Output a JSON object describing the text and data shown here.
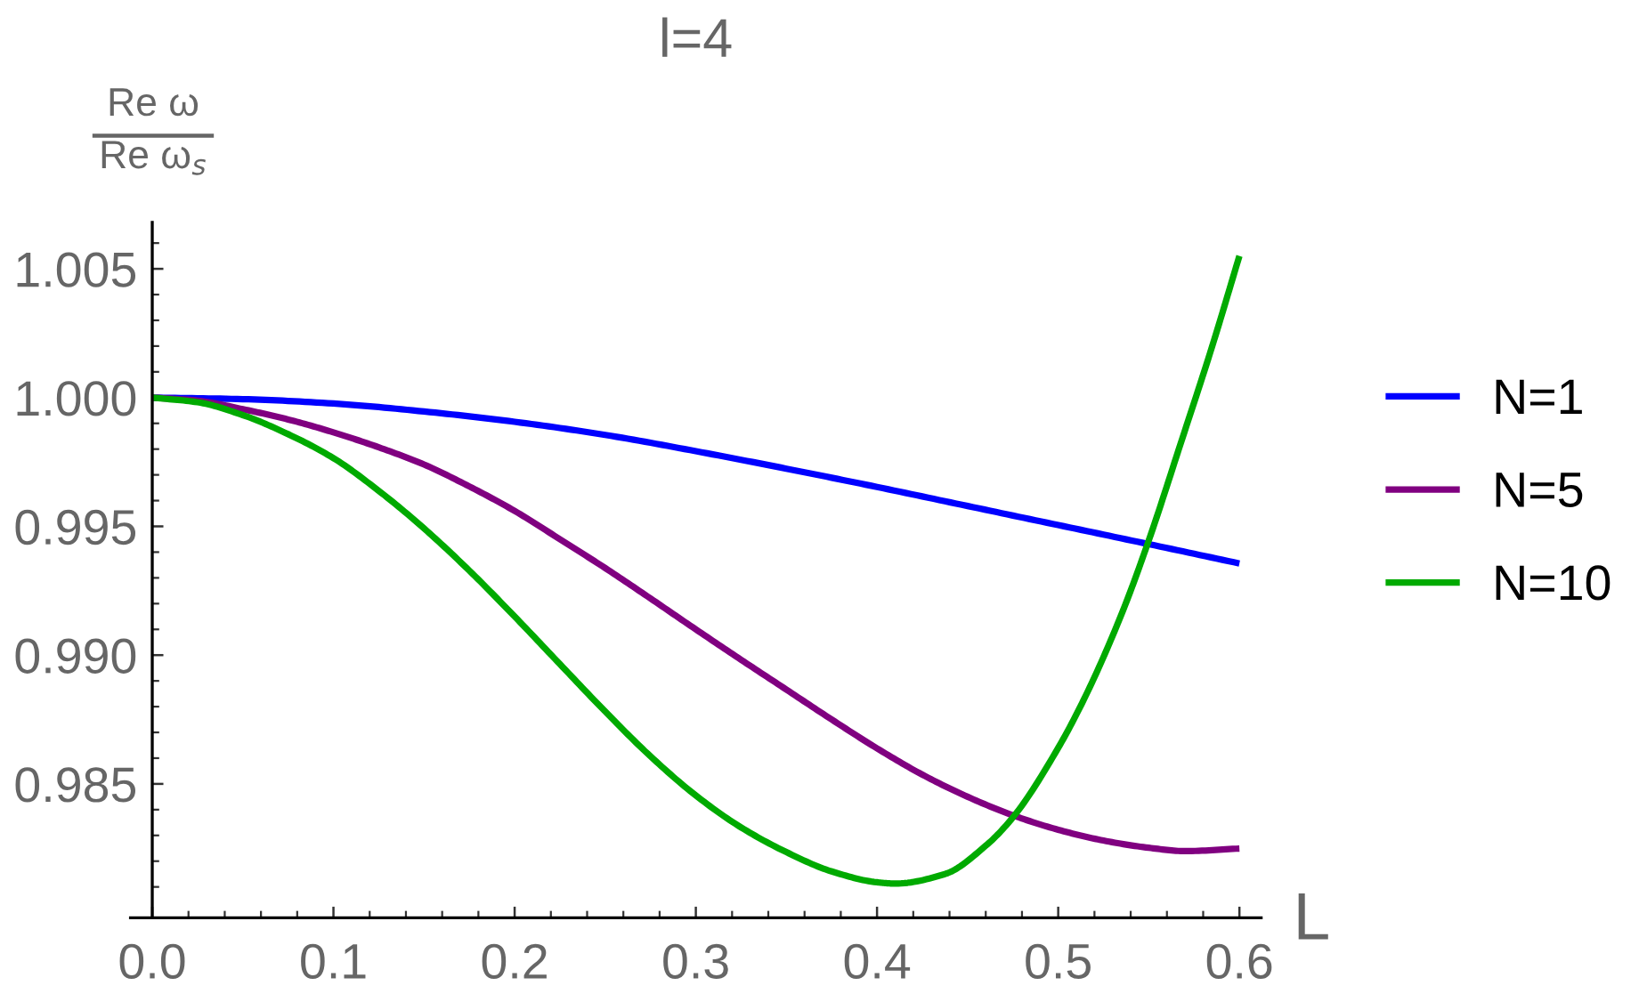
{
  "chart_data": {
    "type": "line",
    "title": "l=4",
    "xlabel": "L",
    "ylabel": "Re ω\nRe ω$_{s}$",
    "xlim": [
      -0.012,
      0.612
    ],
    "ylim": [
      0.9798,
      1.0068
    ],
    "xticks": [
      {
        "value": 0,
        "label": "0.0"
      },
      {
        "value": 0.02,
        "label": null
      },
      {
        "value": 0.04,
        "label": null
      },
      {
        "value": 0.06,
        "label": null
      },
      {
        "value": 0.08,
        "label": null
      },
      0.1,
      {
        "value": 0.12,
        "label": null
      },
      {
        "value": 0.14,
        "label": null
      },
      {
        "value": 0.16,
        "label": null
      },
      {
        "value": 0.18,
        "label": null
      },
      0.2,
      {
        "value": 0.22,
        "label": null
      },
      {
        "value": 0.24,
        "label": null
      },
      {
        "value": 0.26,
        "label": null
      },
      {
        "value": 0.28,
        "label": null
      },
      0.3,
      {
        "value": 0.32,
        "label": null
      },
      {
        "value": 0.34,
        "label": null
      },
      {
        "value": 0.36,
        "label": null
      },
      {
        "value": 0.38,
        "label": null
      },
      0.4,
      {
        "value": 0.42,
        "label": null
      },
      {
        "value": 0.44,
        "label": null
      },
      {
        "value": 0.46,
        "label": null
      },
      {
        "value": 0.48,
        "label": null
      },
      0.5,
      {
        "value": 0.52,
        "label": null
      },
      {
        "value": 0.54,
        "label": null
      },
      {
        "value": 0.56,
        "label": null
      },
      {
        "value": 0.58,
        "label": null
      },
      0.6
    ],
    "yticks": [
      {
        "value": 0.981,
        "label": null
      },
      {
        "value": 0.982,
        "label": null
      },
      {
        "value": 0.983,
        "label": null
      },
      {
        "value": 0.984,
        "label": null
      },
      0.985,
      {
        "value": 0.986,
        "label": null
      },
      {
        "value": 0.987,
        "label": null
      },
      {
        "value": 0.988,
        "label": null
      },
      {
        "value": 0.989,
        "label": null
      },
      {
        "value": 0.99,
        "label": "0.990"
      },
      {
        "value": 0.991,
        "label": null
      },
      {
        "value": 0.992,
        "label": null
      },
      {
        "value": 0.993,
        "label": null
      },
      {
        "value": 0.994,
        "label": null
      },
      0.995,
      {
        "value": 0.996,
        "label": null
      },
      {
        "value": 0.997,
        "label": null
      },
      {
        "value": 0.998,
        "label": null
      },
      {
        "value": 0.999,
        "label": null
      },
      {
        "value": 1,
        "label": "1.000"
      },
      {
        "value": 1.001,
        "label": null
      },
      {
        "value": 1.002,
        "label": null
      },
      {
        "value": 1.003,
        "label": null
      },
      {
        "value": 1.004,
        "label": null
      },
      1.005,
      {
        "value": 1.006,
        "label": null
      }
    ],
    "legend": "right",
    "series": [
      {
        "name": "N=1",
        "color": "#0000ff",
        "x": [
          0,
          0.05,
          0.1,
          0.15,
          0.2,
          0.25,
          0.3,
          0.35,
          0.4,
          0.45,
          0.5,
          0.55,
          0.6
        ],
        "values": [
          1.0,
          0.99994,
          0.99977,
          0.99946,
          0.99906,
          0.99855,
          0.99792,
          0.99724,
          0.99653,
          0.99579,
          0.99505,
          0.99431,
          0.99356
        ]
      },
      {
        "name": "N=5",
        "color": "#800080",
        "x": [
          0,
          0.025,
          0.05,
          0.075,
          0.1,
          0.125,
          0.15,
          0.175,
          0.2,
          0.225,
          0.25,
          0.275,
          0.3,
          0.325,
          0.35,
          0.375,
          0.4,
          0.425,
          0.45,
          0.475,
          0.5,
          0.525,
          0.55,
          0.57,
          0.6
        ],
        "values": [
          1.0,
          0.99988,
          0.99955,
          0.99915,
          0.99865,
          0.99807,
          0.9974,
          0.99655,
          0.9956,
          0.9945,
          0.99338,
          0.9922,
          0.991,
          0.98982,
          0.98866,
          0.9875,
          0.98638,
          0.98536,
          0.9845,
          0.98378,
          0.98322,
          0.9828,
          0.98252,
          0.98239,
          0.98249
        ]
      },
      {
        "name": "N=10",
        "color": "#00aa00",
        "x": [
          0,
          0.025,
          0.05,
          0.075,
          0.1,
          0.125,
          0.15,
          0.175,
          0.2,
          0.225,
          0.25,
          0.275,
          0.3,
          0.325,
          0.35,
          0.375,
          0.4,
          0.41,
          0.4375,
          0.46,
          0.475,
          0.5,
          0.515,
          0.535,
          0.55,
          0.5675,
          0.585,
          0.6
        ],
        "values": [
          1.0,
          0.99982,
          0.99932,
          0.99858,
          0.99765,
          0.99638,
          0.99492,
          0.99328,
          0.9915,
          0.98965,
          0.98781,
          0.98607,
          0.98455,
          0.98331,
          0.98235,
          0.9816,
          0.98118,
          0.98113,
          0.9815,
          0.9826,
          0.9837,
          0.9864,
          0.9884,
          0.9916,
          0.99446,
          0.9982,
          1.002,
          1.0055
        ]
      }
    ]
  }
}
